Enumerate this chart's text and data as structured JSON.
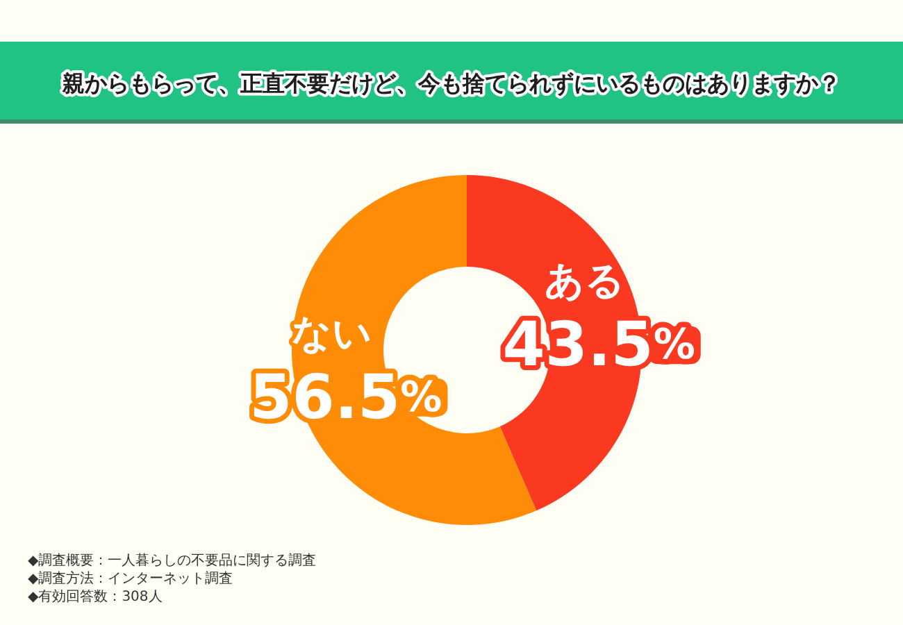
{
  "chart_data": {
    "type": "donut",
    "title": "親からもらって、正直不要だけど、今も捨てられずにいるものはありますか？",
    "categories": [
      "ある",
      "ない"
    ],
    "values": [
      43.5,
      56.5
    ],
    "colors": [
      "#f93a20",
      "#fe8c06"
    ],
    "value_labels": [
      "43.5%",
      "56.5%"
    ],
    "annotations": [
      "◆調査概要：一人暮らしの不要品に関する調査",
      "◆調査方法：インターネット調査",
      "◆有効回答数：308人"
    ]
  }
}
